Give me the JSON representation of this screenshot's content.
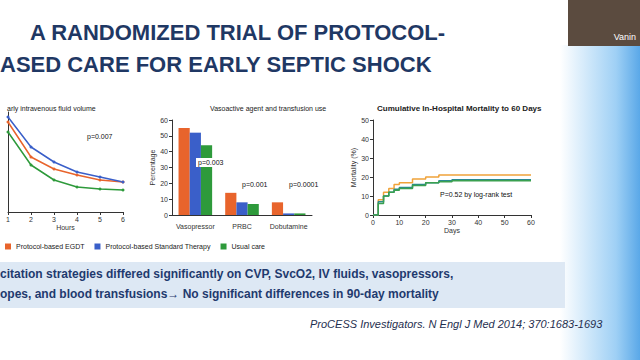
{
  "slide": {
    "title": [
      "A RANDOMIZED TRIAL OF PROTOCOL-",
      "ASED CARE FOR EARLY SEPTIC SHOCK"
    ],
    "summary": [
      "citation strategies differed significantly on  CVP, SvcO2, IV fluids, vasopressors,",
      "opes, and blood transfusions→ No significant differences in 90-day mortality"
    ],
    "citation": "ProCESS Investigators. N Engl J Med 2014; 370:1683-1693",
    "speaker": "Vanin"
  },
  "chart_data": [
    {
      "type": "line",
      "title": "arly intravenous fluid volume",
      "x_label": "Hours",
      "x": [
        1,
        2,
        3,
        4,
        5,
        6
      ],
      "xlim": [
        1,
        6
      ],
      "xticks": [
        1,
        2,
        3,
        4,
        5,
        6
      ],
      "ylim": [
        0,
        100
      ],
      "yticks": [],
      "tick_labels": "x",
      "grid": false,
      "marker": "circle",
      "annotations": [
        "p=0.007"
      ],
      "legend": "bottom",
      "series": [
        {
          "name": "Protocol-based EGDT",
          "color": "#e8642c",
          "values": [
            90,
            55,
            43,
            37,
            32,
            30
          ]
        },
        {
          "name": "Protocol-based Standard Therapy",
          "color": "#3a5fc9",
          "values": [
            95,
            65,
            50,
            40,
            35,
            30
          ]
        },
        {
          "name": "Usual care",
          "color": "#2e9a3b",
          "values": [
            80,
            47,
            32,
            25,
            23,
            22
          ]
        }
      ]
    },
    {
      "type": "bar",
      "title": "Vasoactive agent and transfusion use",
      "y_label": "Percentage",
      "categories": [
        "Vasopressor",
        "PRBC",
        "Dobutamine"
      ],
      "ylim": [
        0,
        60
      ],
      "yticks": [
        0,
        10,
        20,
        30,
        40,
        50,
        60
      ],
      "grid": false,
      "annotations": [
        "p=0.003",
        "p=0.001",
        "p=0.0001"
      ],
      "series": [
        {
          "name": "Protocol-based EGDT",
          "color": "#e8642c",
          "values": [
            55,
            14,
            8
          ]
        },
        {
          "name": "Protocol-based Standard Therapy",
          "color": "#3a5fc9",
          "values": [
            52,
            8,
            1
          ]
        },
        {
          "name": "Usual care",
          "color": "#2e9a3b",
          "values": [
            44,
            7,
            1
          ]
        }
      ]
    },
    {
      "type": "line",
      "title": "Cumulative In-Hospital Mortality to 60 Days",
      "x_label": "Days",
      "y_label": "Mortality (%)",
      "x": [
        0,
        2,
        4,
        6,
        8,
        10,
        15,
        20,
        25,
        30,
        40,
        50,
        60
      ],
      "xlim": [
        0,
        60
      ],
      "xticks": [
        0,
        10,
        20,
        30,
        40,
        50,
        60
      ],
      "ylim": [
        0,
        50
      ],
      "yticks": [
        0,
        10,
        20,
        30,
        40,
        50
      ],
      "grid": false,
      "marker": "none",
      "line_style": "step",
      "annotations": [
        "P=0.52 by log-rank test"
      ],
      "series": [
        {
          "color": "#f0a33a",
          "values": [
            0,
            8,
            12,
            14,
            16,
            17,
            19,
            20,
            21,
            21,
            21,
            21,
            21
          ]
        },
        {
          "color": "#2a8a8f",
          "values": [
            0,
            7,
            10,
            12,
            13.5,
            14.5,
            16,
            17,
            18,
            18.5,
            18.5,
            18.5,
            18.5
          ]
        },
        {
          "color": "#3aa050",
          "values": [
            0,
            6,
            10,
            12,
            13,
            14,
            15.5,
            17,
            17.5,
            18,
            18,
            18,
            18
          ]
        }
      ]
    }
  ]
}
